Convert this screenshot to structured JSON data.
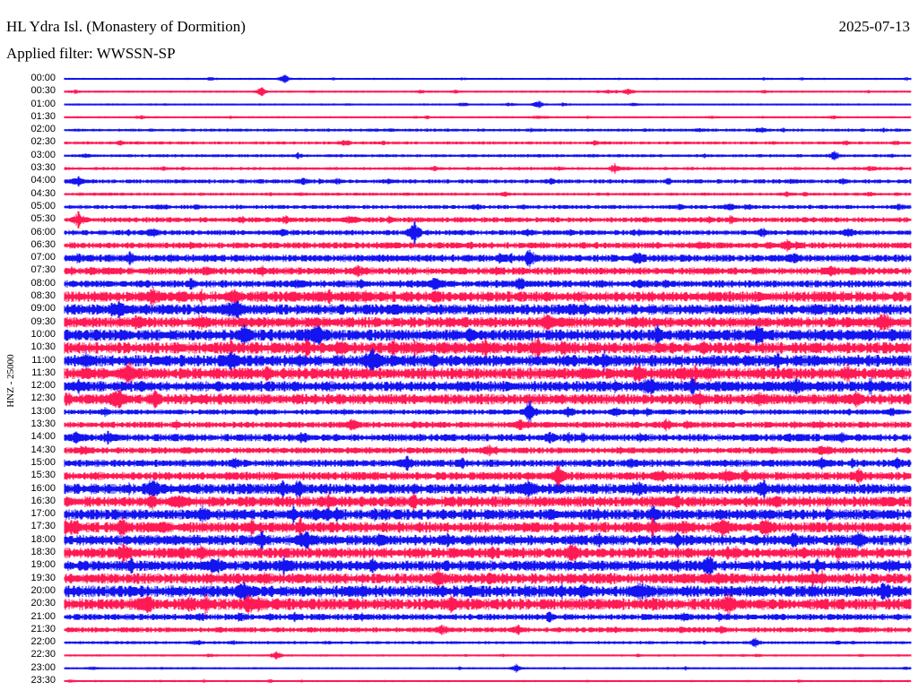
{
  "header": {
    "title": "HL Ydra Isl. (Monastery of Dormition)",
    "date": "2025-07-13",
    "filter": "Applied filter: WWSSN-SP"
  },
  "chart_data": {
    "type": "line",
    "title": "HL Ydra Isl. (Monastery of Dormition)",
    "ylabel": "HNZ - 25000",
    "xlabel": "",
    "x_range_minutes": [
      0,
      30
    ],
    "colors": {
      "even_rows": "#1414f0",
      "odd_rows": "#ff1a55"
    },
    "rows": [
      "00:00",
      "00:30",
      "01:00",
      "01:30",
      "02:00",
      "02:30",
      "03:00",
      "03:30",
      "04:00",
      "04:30",
      "05:00",
      "05:30",
      "06:00",
      "06:30",
      "07:00",
      "07:30",
      "08:00",
      "08:30",
      "09:00",
      "09:30",
      "10:00",
      "10:30",
      "11:00",
      "11:30",
      "12:00",
      "12:30",
      "13:00",
      "13:30",
      "14:00",
      "14:30",
      "15:00",
      "15:30",
      "16:00",
      "16:30",
      "17:00",
      "17:30",
      "18:00",
      "18:30",
      "19:00",
      "19:30",
      "20:00",
      "20:30",
      "21:00",
      "21:30",
      "22:00",
      "22:30",
      "23:00",
      "23:30"
    ],
    "noise_level": [
      1,
      1,
      1,
      1,
      1.5,
      1.5,
      1.5,
      1.5,
      2,
      1.5,
      2,
      2.5,
      2.5,
      3,
      3.5,
      3.5,
      3.5,
      5,
      5,
      5,
      5.5,
      5.5,
      5.5,
      5.5,
      5,
      5,
      2.5,
      3,
      3.5,
      3,
      3.5,
      4,
      5,
      5,
      5,
      5,
      5,
      5,
      5,
      5,
      5.5,
      5.5,
      3,
      2.5,
      1.5,
      1,
      1,
      1
    ],
    "events": [
      {
        "row": "00:00",
        "minute": 7.8,
        "amp": 5
      },
      {
        "row": "00:30",
        "minute": 7.0,
        "amp": 6
      },
      {
        "row": "00:30",
        "minute": 20.0,
        "amp": 5
      },
      {
        "row": "01:00",
        "minute": 16.8,
        "amp": 5
      },
      {
        "row": "03:00",
        "minute": 27.3,
        "amp": 6
      },
      {
        "row": "03:30",
        "minute": 19.5,
        "amp": 6
      },
      {
        "row": "04:00",
        "minute": 0.5,
        "amp": 6
      },
      {
        "row": "05:30",
        "minute": 0.5,
        "amp": 10
      },
      {
        "row": "06:00",
        "minute": 12.4,
        "amp": 14
      },
      {
        "row": "07:00",
        "minute": 16.5,
        "amp": 12
      },
      {
        "row": "10:30",
        "minute": 16.8,
        "amp": 12
      },
      {
        "row": "13:00",
        "minute": 16.5,
        "amp": 14
      },
      {
        "row": "15:30",
        "minute": 17.5,
        "amp": 14
      },
      {
        "row": "20:30",
        "minute": 5.0,
        "amp": 12
      },
      {
        "row": "22:00",
        "minute": 24.5,
        "amp": 6
      },
      {
        "row": "22:30",
        "minute": 7.5,
        "amp": 6
      },
      {
        "row": "23:00",
        "minute": 16.0,
        "amp": 5
      }
    ]
  }
}
